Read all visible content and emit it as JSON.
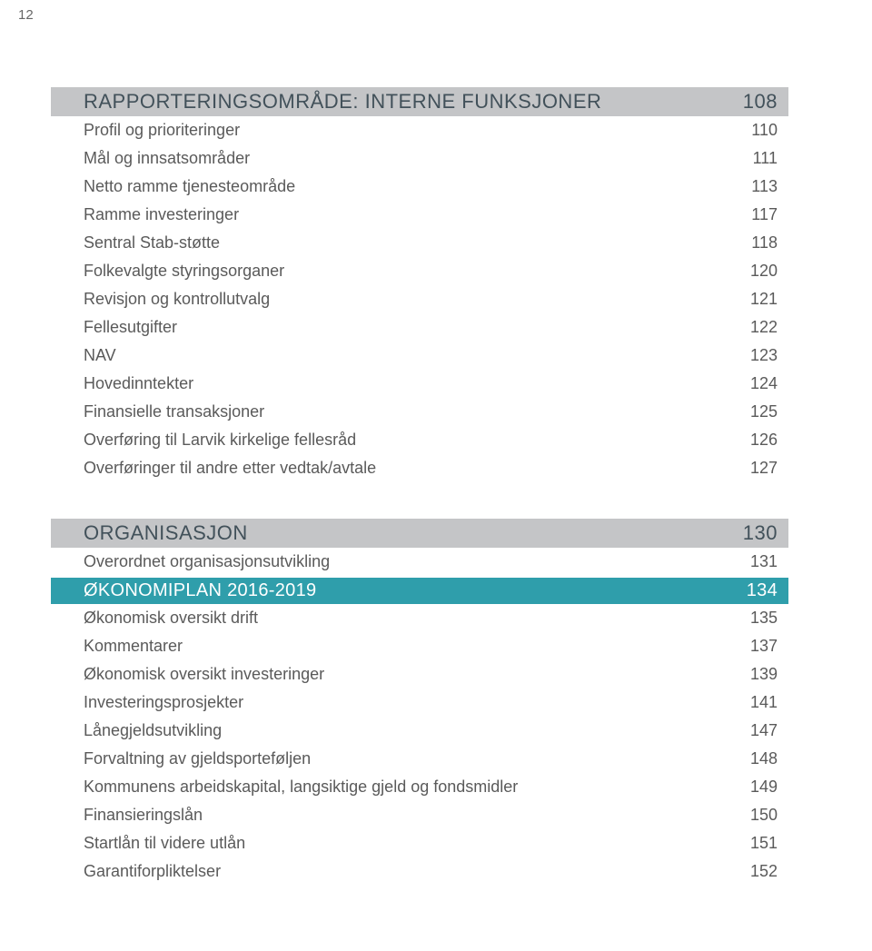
{
  "page_number": "12",
  "colors": {
    "section_bg": "#c4c5c7",
    "section_fg": "#42515a",
    "teal_bg": "#2f9eab",
    "teal_fg": "#ffffff",
    "item_fg": "#5a5a5a"
  },
  "section1": {
    "title": "RAPPORTERINGSOMRÅDE: INTERNE FUNKSJONER",
    "page": "108",
    "items": [
      {
        "label": "Profil og prioriteringer",
        "page": "110"
      },
      {
        "label": "Mål og innsatsområder",
        "page": "111"
      },
      {
        "label": "Netto ramme tjenesteområde",
        "page": "113"
      },
      {
        "label": "Ramme investeringer",
        "page": "117"
      },
      {
        "label": "Sentral Stab-støtte",
        "page": "118"
      },
      {
        "label": "Folkevalgte styringsorganer",
        "page": "120"
      },
      {
        "label": "Revisjon og kontrollutvalg",
        "page": "121"
      },
      {
        "label": "Fellesutgifter",
        "page": "122"
      },
      {
        "label": "NAV",
        "page": "123"
      },
      {
        "label": "Hovedinntekter",
        "page": "124"
      },
      {
        "label": "Finansielle transaksjoner",
        "page": "125"
      },
      {
        "label": "Overføring til Larvik kirkelige fellesråd",
        "page": "126"
      },
      {
        "label": "Overføringer til andre etter vedtak/avtale",
        "page": "127"
      }
    ]
  },
  "section2": {
    "title": "ORGANISASJON",
    "page": "130",
    "items": [
      {
        "label": "Overordnet organisasjonsutvikling",
        "page": "131"
      }
    ]
  },
  "section3": {
    "title": "ØKONOMIPLAN 2016-2019",
    "page": "134",
    "items": [
      {
        "label": "Økonomisk oversikt drift",
        "page": "135"
      },
      {
        "label": "Kommentarer",
        "page": "137"
      },
      {
        "label": "Økonomisk oversikt investeringer",
        "page": "139"
      },
      {
        "label": "Investeringsprosjekter",
        "page": "141"
      },
      {
        "label": "Lånegjeldsutvikling",
        "page": "147"
      },
      {
        "label": "Forvaltning av gjeldsporteføljen",
        "page": "148"
      },
      {
        "label": "Kommunens arbeidskapital, langsiktige gjeld og fondsmidler",
        "page": "149"
      },
      {
        "label": "Finansieringslån",
        "page": "150"
      },
      {
        "label": "Startlån til videre utlån",
        "page": "151"
      },
      {
        "label": "Garantiforpliktelser",
        "page": "152"
      }
    ]
  }
}
